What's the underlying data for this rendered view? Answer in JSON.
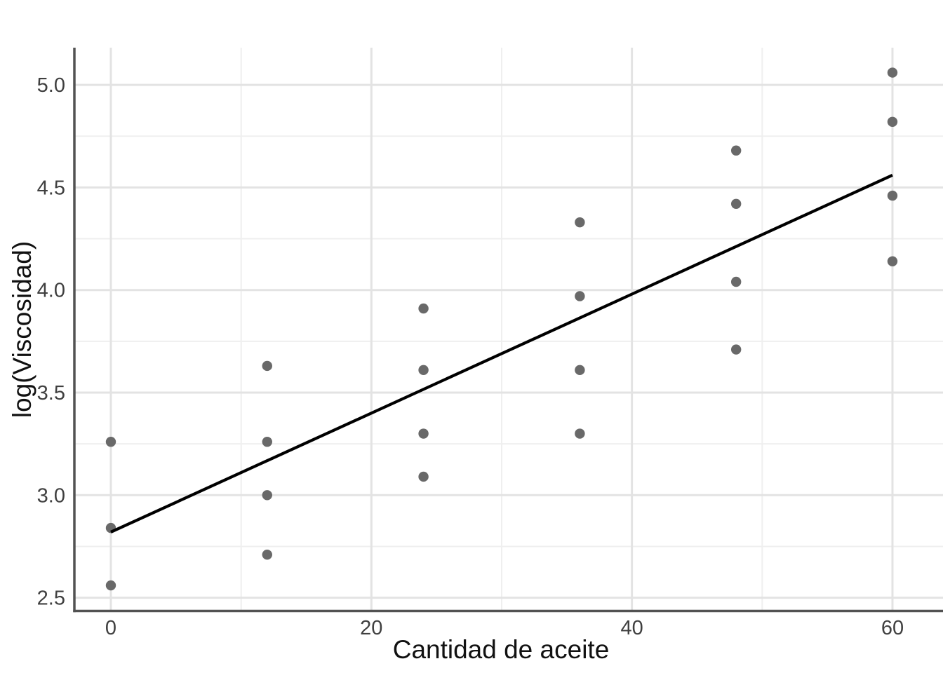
{
  "chart_data": {
    "type": "scatter",
    "title": "",
    "xlabel": "Cantidad de aceite",
    "ylabel": "log(Viscosidad)",
    "xlim": [
      -2.8,
      63.9
    ],
    "ylim": [
      2.44,
      5.18
    ],
    "grid": true,
    "legend": null,
    "x_ticks": [
      0,
      20,
      40,
      60
    ],
    "x_tick_labels": [
      "0",
      "20",
      "40",
      "60"
    ],
    "x_minor_ticks": [
      10,
      30,
      50
    ],
    "y_ticks": [
      2.5,
      3.0,
      3.5,
      4.0,
      4.5,
      5.0
    ],
    "y_tick_labels": [
      "2.5",
      "3.0",
      "3.5",
      "4.0",
      "4.5",
      "5.0"
    ],
    "y_minor_ticks": [
      2.75,
      3.25,
      3.75,
      4.25,
      4.75
    ],
    "points": [
      {
        "x": 0,
        "y": 3.26
      },
      {
        "x": 0,
        "y": 2.84
      },
      {
        "x": 0,
        "y": 2.56
      },
      {
        "x": 12,
        "y": 3.63
      },
      {
        "x": 12,
        "y": 3.26
      },
      {
        "x": 12,
        "y": 3.0
      },
      {
        "x": 12,
        "y": 2.71
      },
      {
        "x": 24,
        "y": 3.91
      },
      {
        "x": 24,
        "y": 3.61
      },
      {
        "x": 24,
        "y": 3.3
      },
      {
        "x": 24,
        "y": 3.09
      },
      {
        "x": 36,
        "y": 4.33
      },
      {
        "x": 36,
        "y": 3.97
      },
      {
        "x": 36,
        "y": 3.61
      },
      {
        "x": 36,
        "y": 3.3
      },
      {
        "x": 48,
        "y": 4.68
      },
      {
        "x": 48,
        "y": 4.42
      },
      {
        "x": 48,
        "y": 4.04
      },
      {
        "x": 48,
        "y": 3.71
      },
      {
        "x": 60,
        "y": 5.06
      },
      {
        "x": 60,
        "y": 4.82
      },
      {
        "x": 60,
        "y": 4.46
      },
      {
        "x": 60,
        "y": 4.14
      }
    ],
    "regression_line": {
      "x1": 0,
      "y1": 2.82,
      "x2": 60,
      "y2": 4.56
    },
    "styles": {
      "background": "#ffffff",
      "point_color": "#696969",
      "point_radius": 7.2,
      "regression_color": "#000000",
      "regression_width": 4.2,
      "grid_major_color": "#e3e3e3",
      "grid_major_width": 3,
      "grid_minor_color": "#efefef",
      "grid_minor_width": 2,
      "axis_line_color": "#525252",
      "axis_line_width": 3.5,
      "tick_label_color": "#404040",
      "title_color": "#111111"
    }
  }
}
